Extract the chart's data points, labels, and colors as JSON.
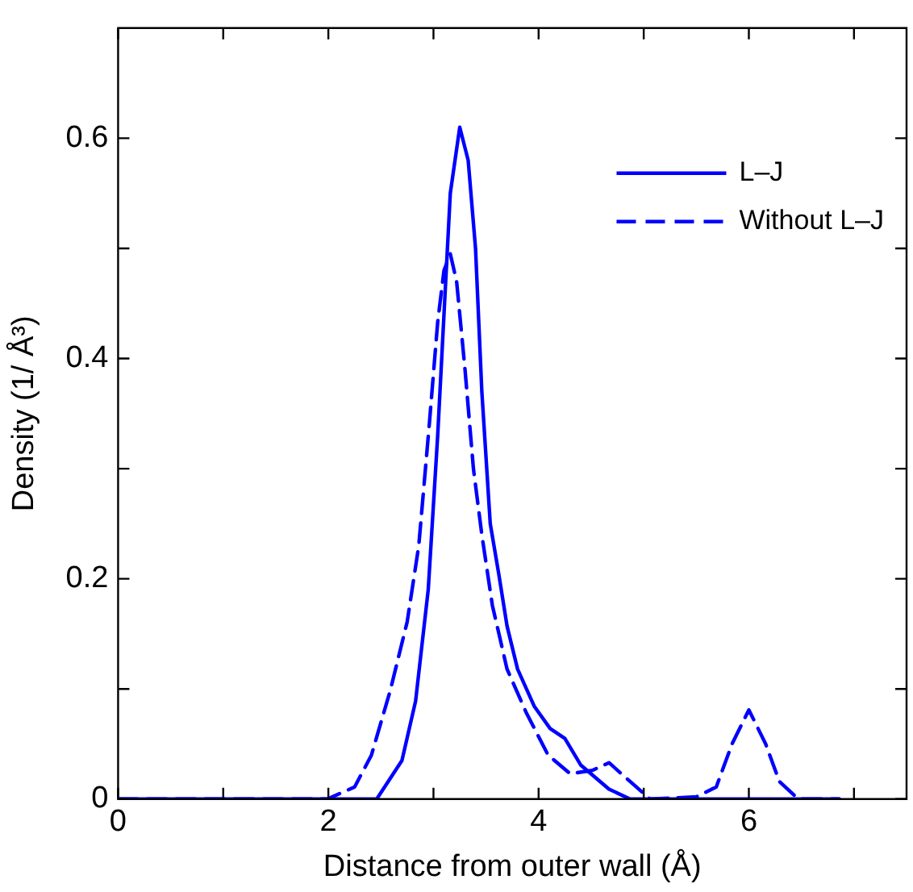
{
  "chart_data": {
    "type": "line",
    "xlabel": "Distance from outer wall (Å)",
    "ylabel": "Density (1/ Å³)",
    "xlim": [
      0,
      7.5
    ],
    "xticks": [
      0,
      {
        "value": 1,
        "label": null
      },
      2,
      {
        "value": 3,
        "label": null
      },
      4,
      {
        "value": 5,
        "label": null
      },
      6,
      {
        "value": 7,
        "label": null
      }
    ],
    "ylim": [
      0,
      0.7
    ],
    "yticks": [
      0,
      {
        "value": 0.1,
        "label": null
      },
      0.2,
      {
        "value": 0.3,
        "label": null
      },
      0.4,
      {
        "value": 0.5,
        "label": null
      },
      0.6
    ],
    "grid": false,
    "legend": "top right",
    "marker": "none",
    "series": [
      {
        "name": "L–J",
        "color": "#0000ff",
        "line_style": "solid",
        "x": [
          0,
          2.46,
          2.7,
          2.83,
          2.95,
          3.04,
          3.1,
          3.16,
          3.25,
          3.33,
          3.4,
          3.46,
          3.54,
          3.62,
          3.7,
          3.8,
          3.96,
          4.11,
          4.25,
          4.4,
          4.67,
          4.87,
          6.86
        ],
        "values": [
          0,
          0,
          0.035,
          0.089,
          0.19,
          0.33,
          0.44,
          0.55,
          0.61,
          0.58,
          0.5,
          0.37,
          0.25,
          0.205,
          0.157,
          0.118,
          0.084,
          0.064,
          0.055,
          0.031,
          0.009,
          0,
          0
        ]
      },
      {
        "name": "Without L–J",
        "color": "#0000ff",
        "line_style": "dashed",
        "x": [
          0,
          1.99,
          2.25,
          2.41,
          2.59,
          2.75,
          2.86,
          2.96,
          3.04,
          3.1,
          3.16,
          3.22,
          3.3,
          3.38,
          3.46,
          3.56,
          3.7,
          3.88,
          4.09,
          4.3,
          4.51,
          4.67,
          4.87,
          5.06,
          5.5,
          5.69,
          5.84,
          6,
          6.16,
          6.29,
          6.47,
          6.86
        ],
        "values": [
          0,
          0,
          0.011,
          0.04,
          0.099,
          0.161,
          0.23,
          0.34,
          0.433,
          0.48,
          0.495,
          0.47,
          0.39,
          0.3,
          0.24,
          0.176,
          0.118,
          0.079,
          0.04,
          0.023,
          0.026,
          0.033,
          0.016,
          0,
          0.002,
          0.011,
          0.05,
          0.081,
          0.05,
          0.016,
          0,
          0
        ]
      }
    ]
  }
}
